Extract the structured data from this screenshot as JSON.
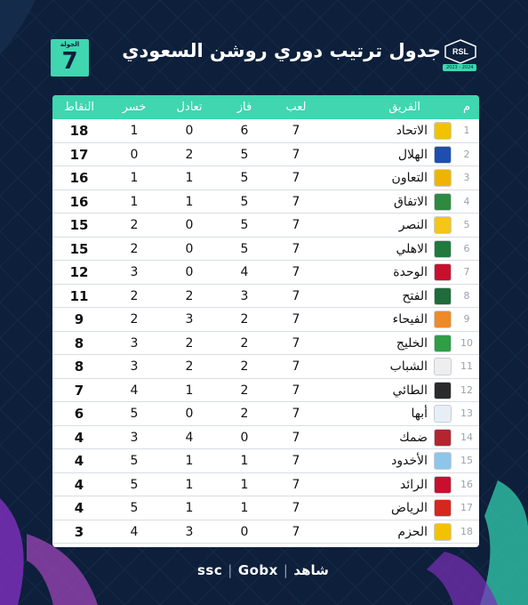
{
  "header": {
    "title": "جدول ترتيب دوري روشن السعودي",
    "round_label": "الجولة",
    "round_number": "7",
    "season": "2023 - 2024",
    "league_logo_text": "RSL"
  },
  "columns": {
    "rank": "م",
    "team": "الفريق",
    "played": "لعب",
    "won": "فاز",
    "drawn": "تعادل",
    "lost": "خسر",
    "points": "النقاط"
  },
  "rows": [
    {
      "rank": "1",
      "team": "الاتحاد",
      "played": "7",
      "won": "6",
      "drawn": "0",
      "lost": "1",
      "points": "18",
      "crest_color": "#f2c200",
      "crest_icon": "ittihad-crest-icon"
    },
    {
      "rank": "2",
      "team": "الهلال",
      "played": "7",
      "won": "5",
      "drawn": "2",
      "lost": "0",
      "points": "17",
      "crest_color": "#1e4fb0",
      "crest_icon": "hilal-crest-icon"
    },
    {
      "rank": "3",
      "team": "التعاون",
      "played": "7",
      "won": "5",
      "drawn": "1",
      "lost": "1",
      "points": "16",
      "crest_color": "#f0b400",
      "crest_icon": "taawoun-crest-icon"
    },
    {
      "rank": "4",
      "team": "الاتفاق",
      "played": "7",
      "won": "5",
      "drawn": "1",
      "lost": "1",
      "points": "16",
      "crest_color": "#2e8a3e",
      "crest_icon": "ettifaq-crest-icon"
    },
    {
      "rank": "5",
      "team": "النصر",
      "played": "7",
      "won": "5",
      "drawn": "0",
      "lost": "2",
      "points": "15",
      "crest_color": "#f5c518",
      "crest_icon": "nassr-crest-icon"
    },
    {
      "rank": "6",
      "team": "الاهلي",
      "played": "7",
      "won": "5",
      "drawn": "0",
      "lost": "2",
      "points": "15",
      "crest_color": "#1f7a3c",
      "crest_icon": "ahli-crest-icon"
    },
    {
      "rank": "7",
      "team": "الوحدة",
      "played": "7",
      "won": "4",
      "drawn": "0",
      "lost": "3",
      "points": "12",
      "crest_color": "#c8102e",
      "crest_icon": "wehda-crest-icon"
    },
    {
      "rank": "8",
      "team": "الفتح",
      "played": "7",
      "won": "3",
      "drawn": "2",
      "lost": "2",
      "points": "11",
      "crest_color": "#1f6b3a",
      "crest_icon": "fateh-crest-icon"
    },
    {
      "rank": "9",
      "team": "الفيحاء",
      "played": "7",
      "won": "2",
      "drawn": "3",
      "lost": "2",
      "points": "9",
      "crest_color": "#f08a24",
      "crest_icon": "feiha-crest-icon"
    },
    {
      "rank": "10",
      "team": "الخليج",
      "played": "7",
      "won": "2",
      "drawn": "2",
      "lost": "3",
      "points": "8",
      "crest_color": "#2f9e44",
      "crest_icon": "khaleej-crest-icon"
    },
    {
      "rank": "11",
      "team": "الشباب",
      "played": "7",
      "won": "2",
      "drawn": "2",
      "lost": "3",
      "points": "8",
      "crest_color": "#eeeeee",
      "crest_icon": "shabab-crest-icon"
    },
    {
      "rank": "12",
      "team": "الطائي",
      "played": "7",
      "won": "2",
      "drawn": "1",
      "lost": "4",
      "points": "7",
      "crest_color": "#2b2b2b",
      "crest_icon": "taee-crest-icon"
    },
    {
      "rank": "13",
      "team": "أبها",
      "played": "7",
      "won": "2",
      "drawn": "0",
      "lost": "5",
      "points": "6",
      "crest_color": "#e8eef5",
      "crest_icon": "abha-crest-icon"
    },
    {
      "rank": "14",
      "team": "ضمك",
      "played": "7",
      "won": "0",
      "drawn": "4",
      "lost": "3",
      "points": "4",
      "crest_color": "#b3262e",
      "crest_icon": "damac-crest-icon"
    },
    {
      "rank": "15",
      "team": "الأخدود",
      "played": "7",
      "won": "1",
      "drawn": "1",
      "lost": "5",
      "points": "4",
      "crest_color": "#8ec5ea",
      "crest_icon": "okhdood-crest-icon"
    },
    {
      "rank": "16",
      "team": "الرائد",
      "played": "7",
      "won": "1",
      "drawn": "1",
      "lost": "5",
      "points": "4",
      "crest_color": "#c8102e",
      "crest_icon": "raed-crest-icon"
    },
    {
      "rank": "17",
      "team": "الرياض",
      "played": "7",
      "won": "1",
      "drawn": "1",
      "lost": "5",
      "points": "4",
      "crest_color": "#d7261e",
      "crest_icon": "riyadh-crest-icon"
    },
    {
      "rank": "18",
      "team": "الحزم",
      "played": "7",
      "won": "0",
      "drawn": "3",
      "lost": "4",
      "points": "3",
      "crest_color": "#f2c200",
      "crest_icon": "hazem-crest-icon"
    }
  ],
  "footer": {
    "logo_ssc": "ssc",
    "logo_gobx": "Gobx",
    "logo_shahid": "شاهد"
  },
  "colors": {
    "background": "#0d1f3a",
    "accent": "#3fd6b0",
    "table_bg": "#ffffff"
  }
}
